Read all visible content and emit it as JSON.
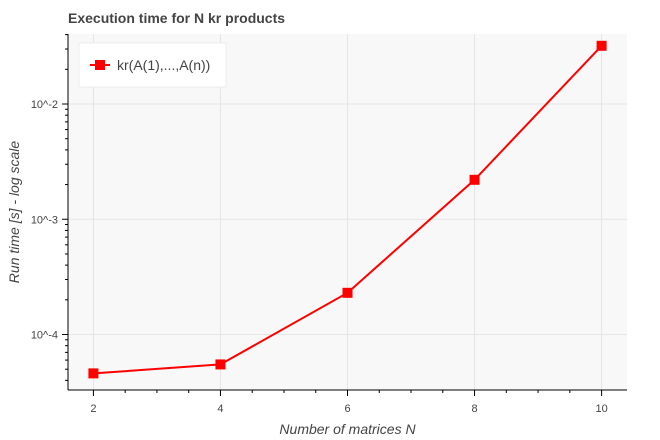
{
  "chart_data": {
    "type": "line",
    "title": "Execution time for N kr products",
    "xlabel": "Number of matrices N",
    "ylabel": "Run time [s] - log scale",
    "x": [
      2,
      4,
      6,
      8,
      10
    ],
    "x_ticks": [
      "2",
      "4",
      "6",
      "8",
      "10"
    ],
    "xlim": [
      1.6,
      10.4
    ],
    "y_scale": "log",
    "y_ticks": [
      {
        "value": 0.0001,
        "label": "10^-4"
      },
      {
        "value": 0.001,
        "label": "10^-3"
      },
      {
        "value": 0.01,
        "label": "10^-2"
      }
    ],
    "ylim": [
      3.3e-05,
      0.0405
    ],
    "series": [
      {
        "name": "kr(A(1),...,A(n))",
        "color": "#ff0000",
        "marker": "square",
        "values": [
          4.6e-05,
          5.5e-05,
          0.00023,
          0.0022,
          0.032
        ]
      }
    ],
    "legend": {
      "position": "top-left"
    },
    "grid": true,
    "plot_background": "#f8f8f8"
  }
}
